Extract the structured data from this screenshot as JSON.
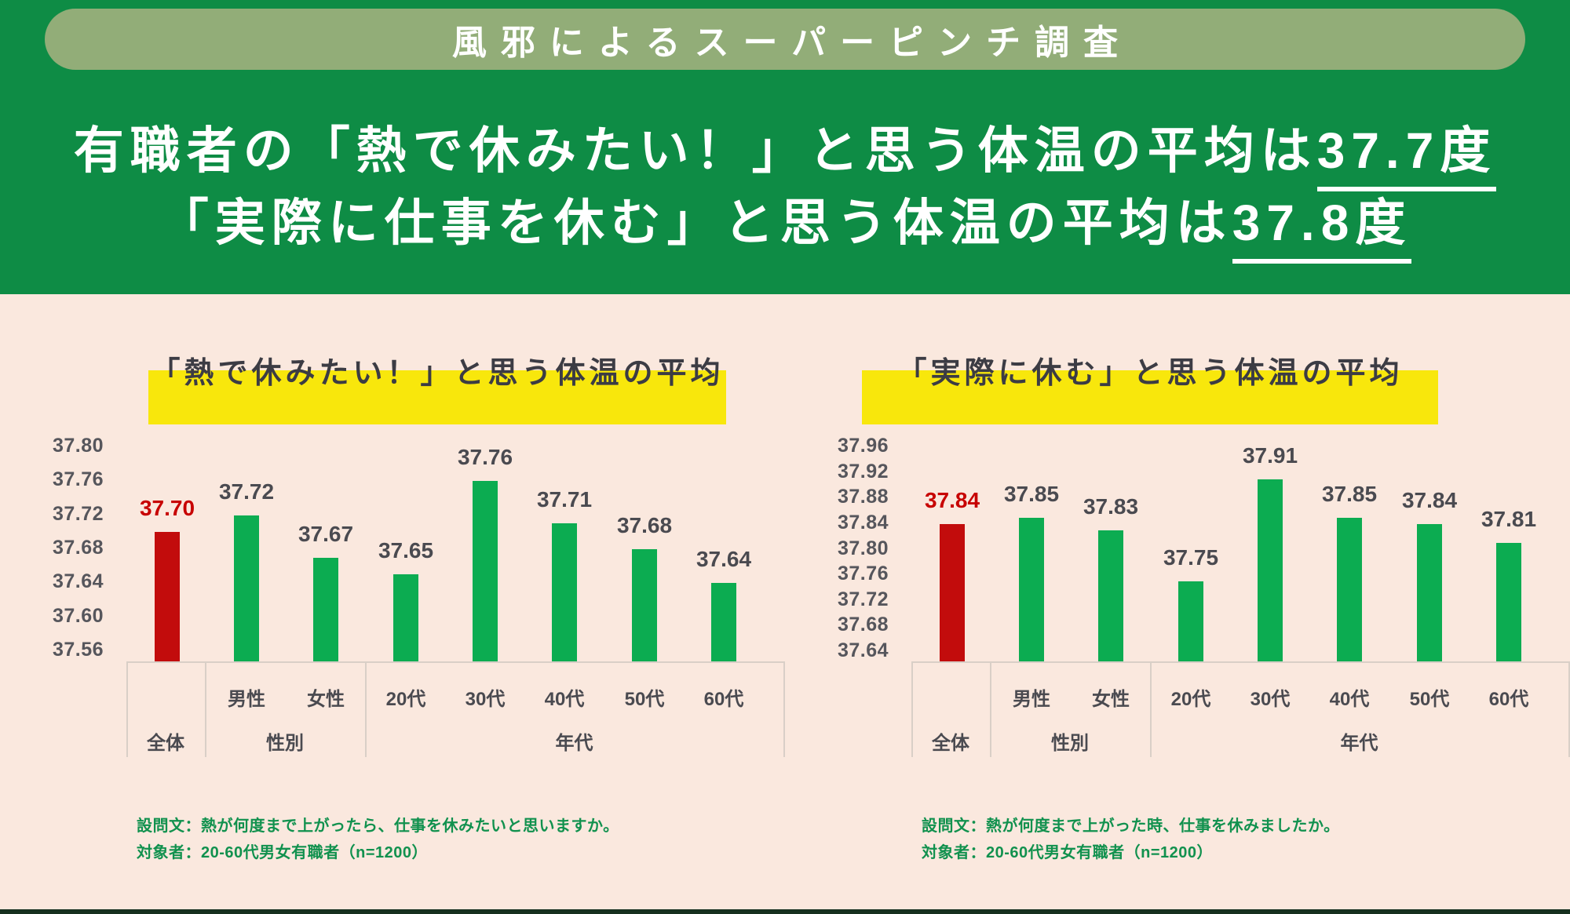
{
  "badge": {
    "label": "風邪によるスーパーピンチ調査"
  },
  "headline": {
    "line1": {
      "text": "有職者の「熱で休みたい！」と思う体温の平均は",
      "underlined": "37.7度"
    },
    "line2": {
      "text": "「実際に仕事を休む」と思う体温の平均は",
      "underlined": "37.8度"
    }
  },
  "colors": {
    "header-green": "#0e8c45",
    "badge-sage": "#92ad78",
    "bg-pink": "#fae8de",
    "hl-yellow": "#f8e70c",
    "bar-green": "#0cac51",
    "bar-red": "#c20c0c",
    "label-red": "#c70000",
    "ink": "#3c3c44",
    "ink2": "#4a4a50",
    "tick-gray": "#56565c",
    "note-green": "#11914e",
    "line": "#d9cfc7",
    "strip": "#16301f"
  },
  "chart_data": [
    {
      "type": "bar",
      "title": "「熱で休みたい！」と思う体温の平均",
      "categories": [
        "全体",
        "男性",
        "女性",
        "20代",
        "30代",
        "40代",
        "50代",
        "60代"
      ],
      "values": [
        37.7,
        37.72,
        37.67,
        37.65,
        37.76,
        37.71,
        37.68,
        37.64
      ],
      "value_labels": [
        "37.70",
        "37.72",
        "37.67",
        "37.65",
        "37.76",
        "37.71",
        "37.68",
        "37.64"
      ],
      "highlight_index": 0,
      "y_ticks": [
        "37.80",
        "37.76",
        "37.72",
        "37.68",
        "37.64",
        "37.60",
        "37.56"
      ],
      "ylim": [
        37.56,
        37.8
      ],
      "tick_step": 0.04,
      "xlabel": "",
      "ylabel": "",
      "grid": false,
      "legend": false,
      "groups": [
        {
          "label": "全体",
          "span": 1
        },
        {
          "label": "性別",
          "span": 2
        },
        {
          "label": "年代",
          "span": 5
        }
      ],
      "note_line1": "設問文：熱が何度まで上がったら、仕事を休みたいと思いますか。",
      "note_line2": "対象者：20-60代男女有職者（n=1200）"
    },
    {
      "type": "bar",
      "title": "「実際に休む」と思う体温の平均",
      "categories": [
        "全体",
        "男性",
        "女性",
        "20代",
        "30代",
        "40代",
        "50代",
        "60代"
      ],
      "values": [
        37.84,
        37.85,
        37.83,
        37.75,
        37.91,
        37.85,
        37.84,
        37.81
      ],
      "value_labels": [
        "37.84",
        "37.85",
        "37.83",
        "37.75",
        "37.91",
        "37.85",
        "37.84",
        "37.81"
      ],
      "highlight_index": 0,
      "y_ticks": [
        "37.96",
        "37.92",
        "37.88",
        "37.84",
        "37.80",
        "37.76",
        "37.72",
        "37.68",
        "37.64"
      ],
      "ylim": [
        37.64,
        37.96
      ],
      "tick_step": 0.04,
      "xlabel": "",
      "ylabel": "",
      "grid": false,
      "legend": false,
      "groups": [
        {
          "label": "全体",
          "span": 1
        },
        {
          "label": "性別",
          "span": 2
        },
        {
          "label": "年代",
          "span": 5
        }
      ],
      "note_line1": "設問文：熱が何度まで上がった時、仕事を休みましたか。",
      "note_line2": "対象者：20-60代男女有職者（n=1200）"
    }
  ]
}
